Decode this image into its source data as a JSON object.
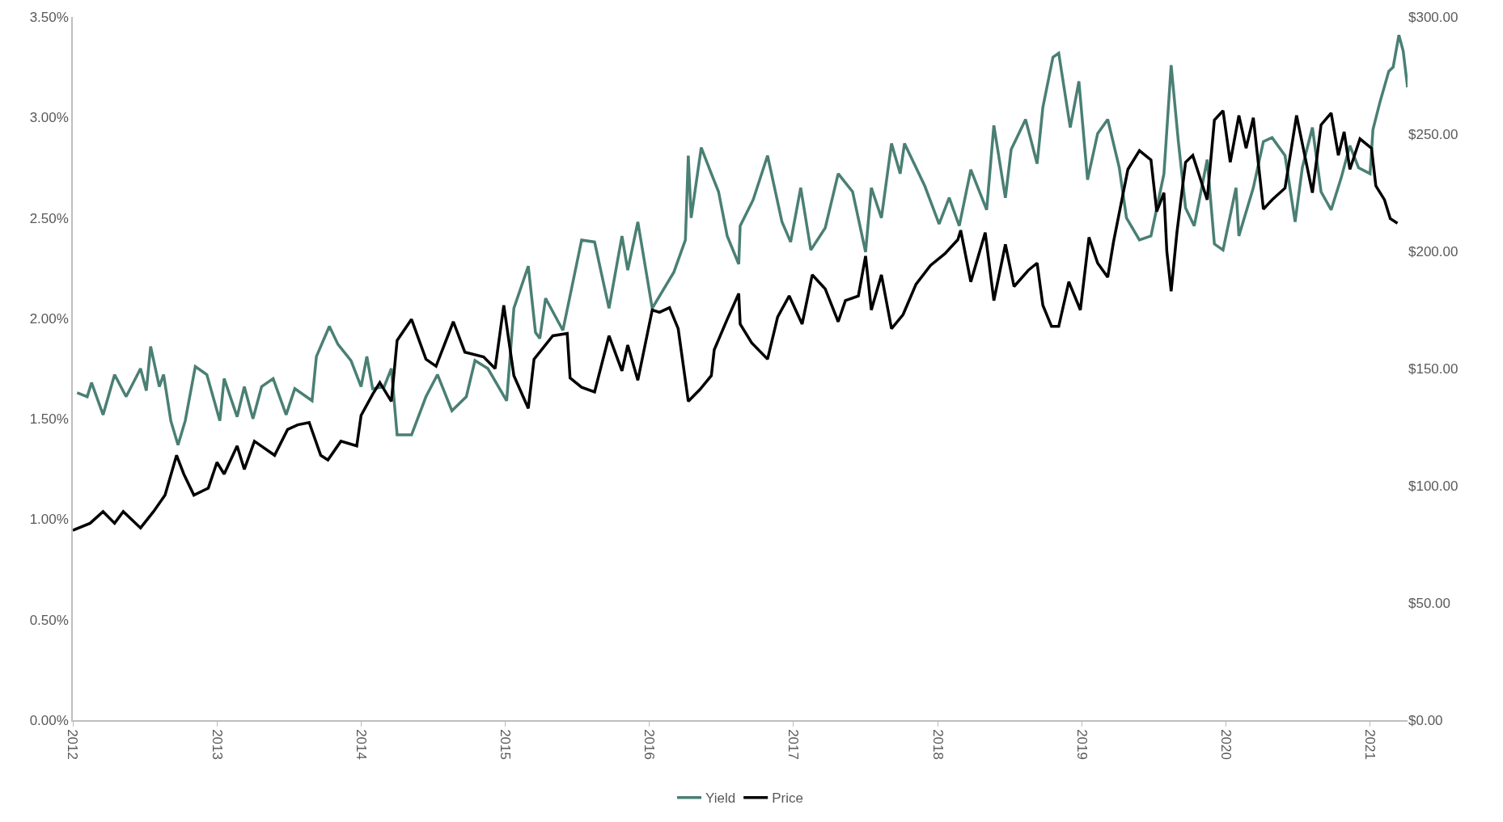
{
  "chart_data": {
    "type": "line",
    "xlim": [
      2012,
      2021.26
    ],
    "xticks": [
      2012,
      2013,
      2014,
      2015,
      2016,
      2017,
      2018,
      2019,
      2020,
      2021
    ],
    "ylim": [
      0,
      3.5
    ],
    "yticks": [
      {
        "value": 0,
        "label": "0.00%"
      },
      {
        "value": 0.5,
        "label": "0.50%"
      },
      {
        "value": 1,
        "label": "1.00%"
      },
      {
        "value": 1.5,
        "label": "1.50%"
      },
      {
        "value": 2,
        "label": "2.00%"
      },
      {
        "value": 2.5,
        "label": "2.50%"
      },
      {
        "value": 3,
        "label": "3.00%"
      },
      {
        "value": 3.5,
        "label": "3.50%"
      }
    ],
    "y2lim": [
      0,
      300
    ],
    "y2ticks": [
      {
        "value": 0,
        "label": "$0.00"
      },
      {
        "value": 50,
        "label": "$50.00"
      },
      {
        "value": 100,
        "label": "$100.00"
      },
      {
        "value": 150,
        "label": "$150.00"
      },
      {
        "value": 200,
        "label": "$200.00"
      },
      {
        "value": 250,
        "label": "$250.00"
      },
      {
        "value": 300,
        "label": "$300.00"
      }
    ],
    "grid": false,
    "legend": "bottom",
    "marker": "none",
    "line_style": "solid",
    "series": [
      {
        "name": "Yield",
        "color": "#4a7f74",
        "x": [
          2012.03,
          2012.1,
          2012.13,
          2012.21,
          2012.29,
          2012.37,
          2012.47,
          2012.51,
          2012.54,
          2012.6,
          2012.63,
          2012.68,
          2012.73,
          2012.78,
          2012.85,
          2012.93,
          2013.02,
          2013.05,
          2013.14,
          2013.19,
          2013.25,
          2013.31,
          2013.39,
          2013.48,
          2013.54,
          2013.66,
          2013.69,
          2013.78,
          2013.84,
          2013.93,
          2014.0,
          2014.04,
          2014.08,
          2014.16,
          2014.21,
          2014.25,
          2014.35,
          2014.45,
          2014.53,
          2014.63,
          2014.73,
          2014.79,
          2014.88,
          2015.01,
          2015.06,
          2015.16,
          2015.21,
          2015.24,
          2015.28,
          2015.4,
          2015.53,
          2015.62,
          2015.72,
          2015.81,
          2015.85,
          2015.92,
          2016.02,
          2016.17,
          2016.25,
          2016.27,
          2016.29,
          2016.36,
          2016.43,
          2016.48,
          2016.54,
          2016.62,
          2016.63,
          2016.72,
          2016.82,
          2016.92,
          2016.98,
          2017.05,
          2017.12,
          2017.22,
          2017.31,
          2017.41,
          2017.5,
          2017.54,
          2017.61,
          2017.68,
          2017.74,
          2017.77,
          2017.91,
          2018.01,
          2018.08,
          2018.15,
          2018.23,
          2018.34,
          2018.39,
          2018.47,
          2018.51,
          2018.61,
          2018.69,
          2018.73,
          2018.8,
          2018.84,
          2018.92,
          2018.98,
          2019.04,
          2019.11,
          2019.18,
          2019.26,
          2019.31,
          2019.4,
          2019.48,
          2019.57,
          2019.62,
          2019.67,
          2019.72,
          2019.78,
          2019.87,
          2019.92,
          2019.98,
          2020.07,
          2020.09,
          2020.19,
          2020.26,
          2020.32,
          2020.41,
          2020.48,
          2020.53,
          2020.6,
          2020.66,
          2020.73,
          2020.8,
          2020.86,
          2020.92,
          2021.0,
          2021.02,
          2021.07,
          2021.13,
          2021.16,
          2021.2,
          2021.23,
          2021.26
        ],
        "values": [
          1.63,
          1.61,
          1.68,
          1.52,
          1.72,
          1.61,
          1.75,
          1.64,
          1.86,
          1.66,
          1.72,
          1.49,
          1.37,
          1.49,
          1.76,
          1.72,
          1.49,
          1.7,
          1.51,
          1.66,
          1.5,
          1.66,
          1.7,
          1.52,
          1.65,
          1.59,
          1.81,
          1.96,
          1.87,
          1.79,
          1.66,
          1.81,
          1.65,
          1.66,
          1.75,
          1.42,
          1.42,
          1.61,
          1.72,
          1.54,
          1.61,
          1.79,
          1.75,
          1.59,
          2.05,
          2.26,
          1.93,
          1.9,
          2.1,
          1.94,
          2.39,
          2.38,
          2.05,
          2.41,
          2.24,
          2.48,
          2.05,
          2.23,
          2.39,
          2.81,
          2.5,
          2.85,
          2.72,
          2.63,
          2.41,
          2.27,
          2.46,
          2.59,
          2.81,
          2.48,
          2.38,
          2.65,
          2.34,
          2.45,
          2.72,
          2.63,
          2.33,
          2.65,
          2.5,
          2.87,
          2.72,
          2.87,
          2.66,
          2.47,
          2.6,
          2.46,
          2.74,
          2.54,
          2.96,
          2.6,
          2.84,
          2.99,
          2.77,
          3.05,
          3.3,
          3.32,
          2.95,
          3.18,
          2.69,
          2.92,
          2.99,
          2.75,
          2.5,
          2.39,
          2.41,
          2.72,
          3.26,
          2.88,
          2.55,
          2.46,
          2.79,
          2.37,
          2.34,
          2.65,
          2.41,
          2.65,
          2.88,
          2.9,
          2.81,
          2.48,
          2.75,
          2.95,
          2.63,
          2.54,
          2.7,
          2.86,
          2.75,
          2.72,
          2.94,
          3.08,
          3.23,
          3.25,
          3.41,
          3.33,
          3.15
        ]
      },
      {
        "name": "Price",
        "color": "#000000",
        "axis": "y2",
        "x": [
          2012.0,
          2012.12,
          2012.21,
          2012.29,
          2012.35,
          2012.47,
          2012.56,
          2012.64,
          2012.72,
          2012.77,
          2012.84,
          2012.94,
          2013.0,
          2013.05,
          2013.14,
          2013.19,
          2013.26,
          2013.4,
          2013.49,
          2013.56,
          2013.64,
          2013.72,
          2013.77,
          2013.86,
          2013.97,
          2014.0,
          2014.08,
          2014.13,
          2014.21,
          2014.25,
          2014.35,
          2014.45,
          2014.52,
          2014.64,
          2014.72,
          2014.85,
          2014.93,
          2014.99,
          2015.06,
          2015.16,
          2015.2,
          2015.33,
          2015.43,
          2015.45,
          2015.53,
          2015.62,
          2015.72,
          2015.81,
          2015.85,
          2015.92,
          2016.02,
          2016.07,
          2016.14,
          2016.2,
          2016.27,
          2016.35,
          2016.43,
          2016.45,
          2016.54,
          2016.62,
          2016.63,
          2016.71,
          2016.82,
          2016.89,
          2016.97,
          2017.06,
          2017.13,
          2017.22,
          2017.31,
          2017.36,
          2017.45,
          2017.5,
          2017.54,
          2017.61,
          2017.68,
          2017.76,
          2017.85,
          2017.95,
          2018.05,
          2018.14,
          2018.16,
          2018.23,
          2018.33,
          2018.39,
          2018.47,
          2018.53,
          2018.63,
          2018.69,
          2018.73,
          2018.79,
          2018.84,
          2018.91,
          2018.99,
          2019.05,
          2019.11,
          2019.18,
          2019.22,
          2019.32,
          2019.4,
          2019.48,
          2019.52,
          2019.57,
          2019.59,
          2019.62,
          2019.66,
          2019.72,
          2019.77,
          2019.87,
          2019.92,
          2019.98,
          2020.03,
          2020.09,
          2020.14,
          2020.19,
          2020.26,
          2020.32,
          2020.41,
          2020.49,
          2020.6,
          2020.66,
          2020.73,
          2020.78,
          2020.82,
          2020.86,
          2020.93,
          2021.01,
          2021.04,
          2021.1,
          2021.14,
          2021.19
        ],
        "values": [
          81,
          84,
          89,
          84,
          89,
          82,
          89,
          96,
          113,
          105,
          96,
          99,
          110,
          105,
          117,
          107,
          119,
          113,
          124,
          126,
          127,
          113,
          111,
          119,
          117,
          130,
          139,
          144,
          136,
          162,
          171,
          154,
          151,
          170,
          157,
          155,
          150,
          177,
          147,
          133,
          154,
          164,
          165,
          146,
          142,
          140,
          164,
          149,
          160,
          145,
          175,
          174,
          176,
          167,
          136,
          141,
          147,
          158,
          171,
          182,
          169,
          161,
          154,
          172,
          181,
          169,
          190,
          184,
          170,
          179,
          181,
          198,
          175,
          190,
          167,
          173,
          186,
          194,
          199,
          205,
          209,
          187,
          208,
          179,
          203,
          185,
          192,
          195,
          177,
          168,
          168,
          187,
          175,
          206,
          195,
          189,
          204,
          235,
          243,
          239,
          217,
          225,
          200,
          183,
          208,
          238,
          241,
          222,
          256,
          260,
          238,
          258,
          244,
          257,
          218,
          222,
          227,
          258,
          225,
          254,
          259,
          241,
          251,
          235,
          248,
          244,
          228,
          222,
          214,
          212
        ]
      }
    ]
  }
}
